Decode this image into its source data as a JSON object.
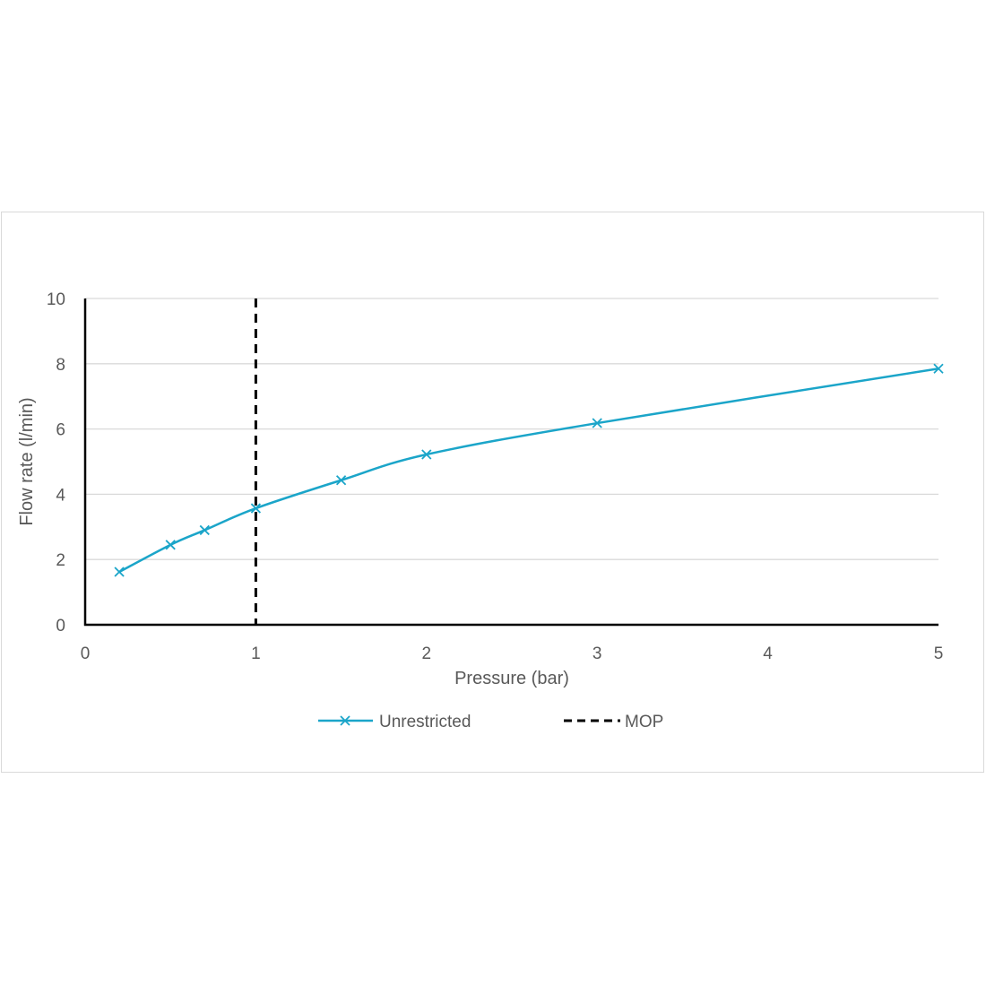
{
  "chart_data": {
    "type": "line",
    "title": "",
    "xlabel": "Pressure (bar)",
    "ylabel": "Flow rate (l/min)",
    "xlim": [
      0,
      5
    ],
    "ylim": [
      0,
      10
    ],
    "x_ticks": [
      "0",
      "1",
      "2",
      "3",
      "4",
      "5"
    ],
    "y_ticks": [
      "0",
      "2",
      "4",
      "6",
      "8",
      "10"
    ],
    "grid": "horizontal",
    "legend_position": "bottom",
    "series": [
      {
        "name": "Unrestricted",
        "color": "#1ba5c9",
        "marker": "x",
        "smooth": true,
        "x": [
          0.2,
          0.5,
          0.7,
          1.0,
          1.5,
          2.0,
          3.0,
          5.0
        ],
        "y": [
          1.62,
          2.45,
          2.9,
          3.57,
          4.43,
          5.22,
          6.18,
          7.85
        ]
      },
      {
        "name": "MOP",
        "color": "#000000",
        "style": "dashed",
        "vertical_at_x": 1.0
      }
    ]
  }
}
